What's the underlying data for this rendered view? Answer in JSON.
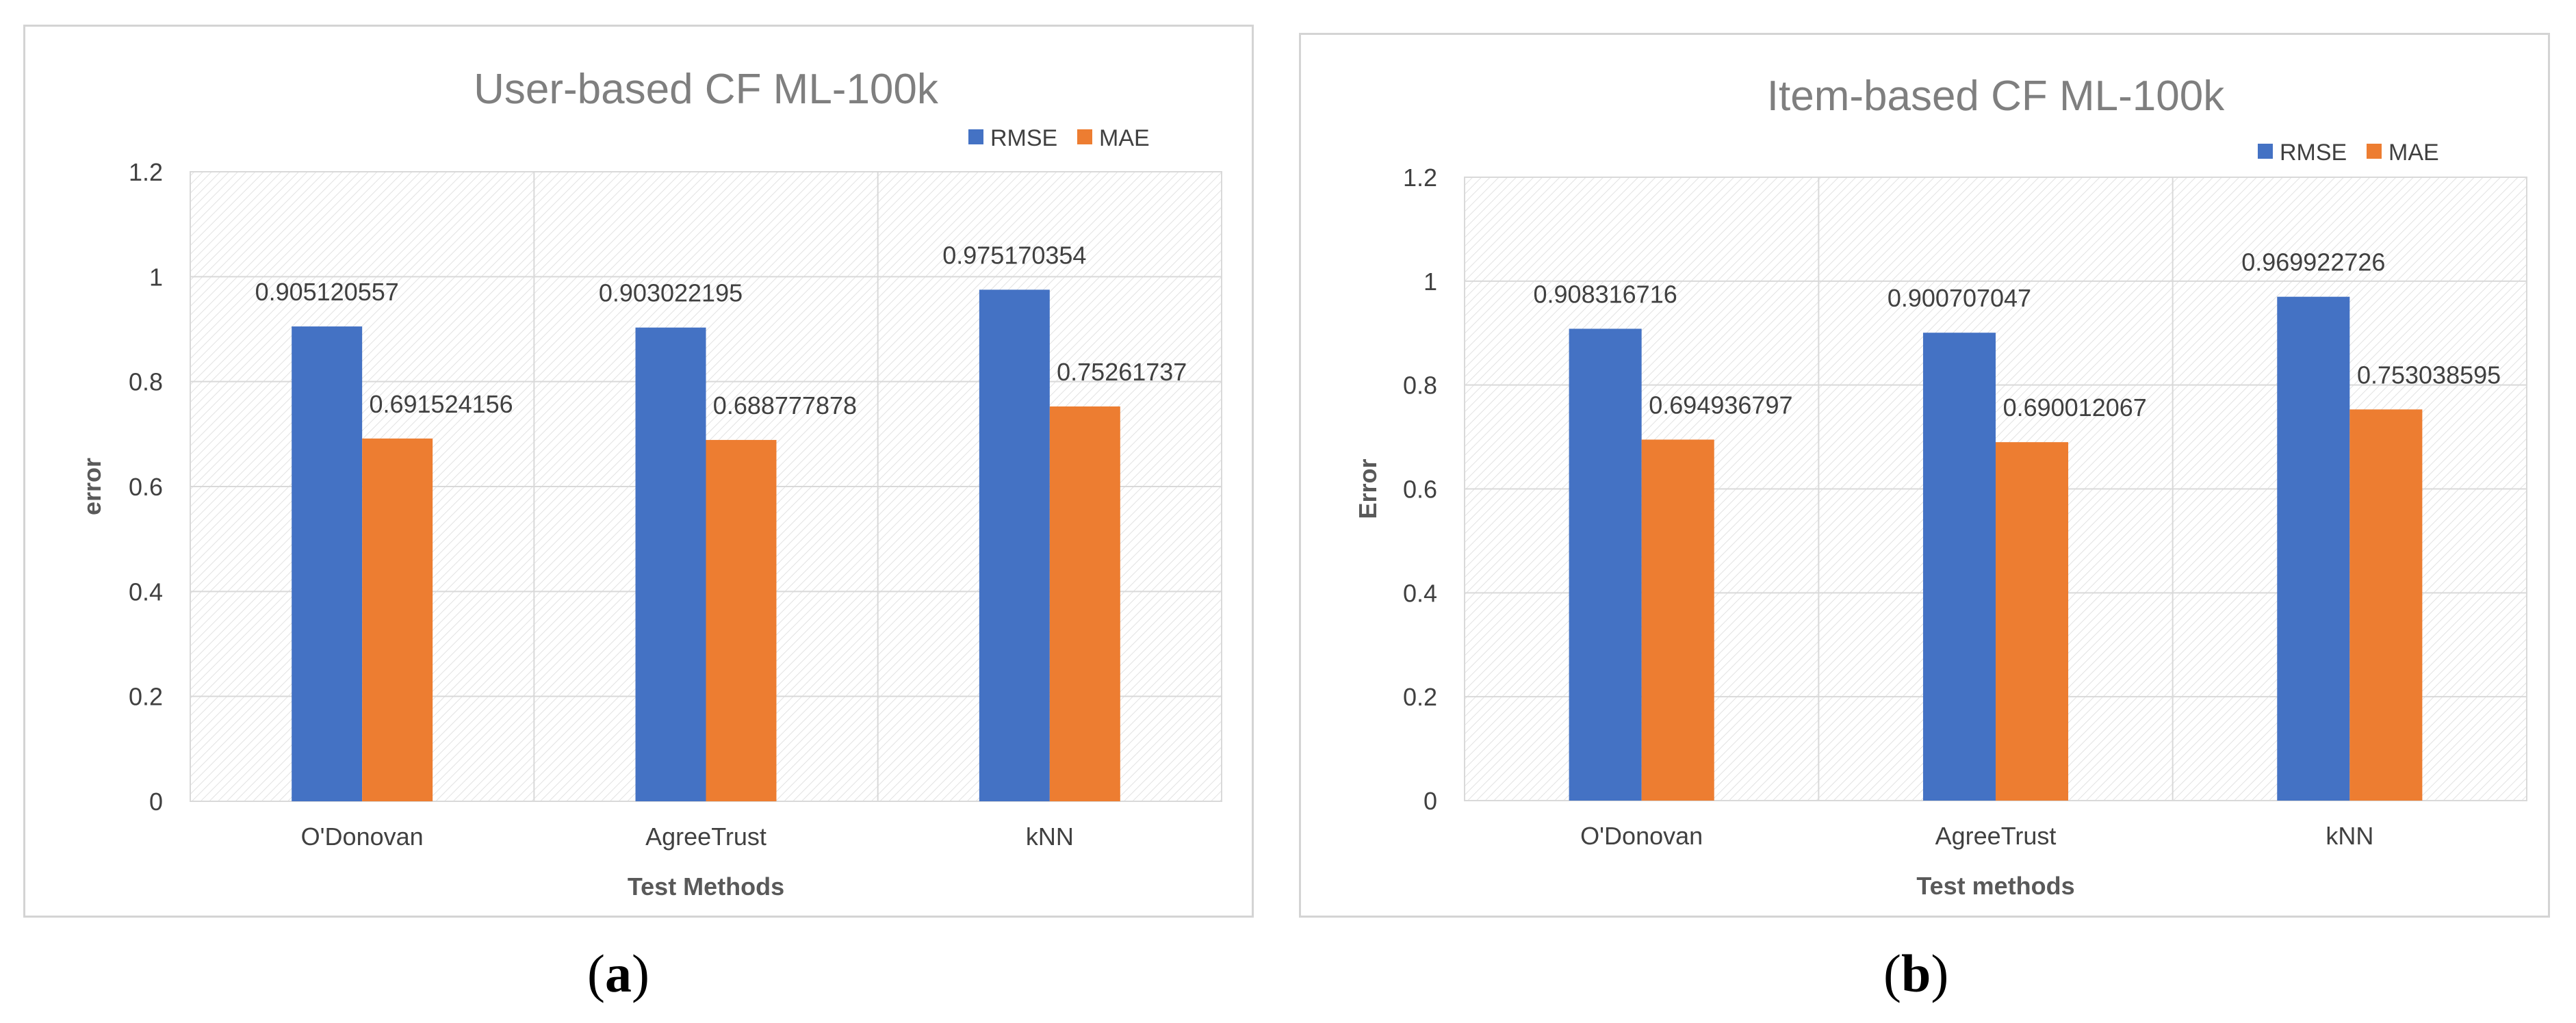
{
  "chart_data": [
    {
      "type": "bar",
      "title": "User-based CF ML-100k",
      "xlabel": "Test Methods",
      "ylabel": "error",
      "categories": [
        "O'Donovan",
        "AgreeTrust",
        "kNN"
      ],
      "series": [
        {
          "name": "RMSE",
          "values": [
            0.905120557,
            0.903022195,
            0.975170354
          ],
          "labels": [
            "0.905120557",
            "0.903022195",
            "0.975170354"
          ],
          "color": "#4472C4"
        },
        {
          "name": "MAE",
          "values": [
            0.691524156,
            0.688777878,
            0.75261737
          ],
          "labels": [
            "0.691524156",
            "0.688777878",
            "0.75261737"
          ],
          "color": "#ED7D31"
        }
      ],
      "yticks": [
        "0",
        "0.2",
        "0.4",
        "0.6",
        "0.8",
        "1",
        "1.2"
      ],
      "ylim": [
        0,
        1.2
      ],
      "grid": true,
      "legend": "top-right"
    },
    {
      "type": "bar",
      "title": "Item-based CF ML-100k",
      "xlabel": "Test methods",
      "ylabel": "Error",
      "categories": [
        "O'Donovan",
        "AgreeTrust",
        "kNN"
      ],
      "series": [
        {
          "name": "RMSE",
          "values": [
            0.908316716,
            0.900707047,
            0.969922726
          ],
          "labels": [
            "0.908316716",
            "0.900707047",
            "0.969922726"
          ],
          "color": "#4472C4"
        },
        {
          "name": "MAE",
          "values": [
            0.694936797,
            0.690012067,
            0.753038595
          ],
          "labels": [
            "0.694936797",
            "0.690012067",
            "0.753038595"
          ],
          "color": "#ED7D31"
        }
      ],
      "yticks": [
        "0",
        "0.2",
        "0.4",
        "0.6",
        "0.8",
        "1",
        "1.2"
      ],
      "ylim": [
        0,
        1.2
      ],
      "grid": true,
      "legend": "top-right"
    }
  ],
  "captions": {
    "a": {
      "open": "(",
      "letter": "a",
      "close": ")"
    },
    "b": {
      "open": "(",
      "letter": "b",
      "close": ")"
    }
  }
}
